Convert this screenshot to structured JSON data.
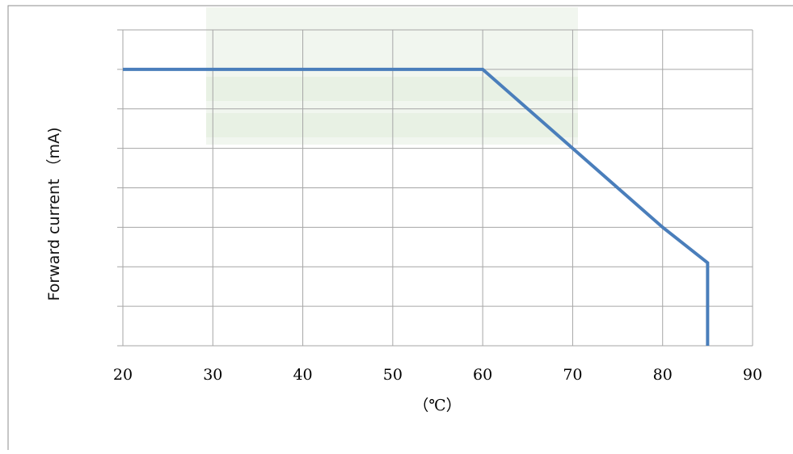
{
  "chart_data": {
    "type": "line",
    "xlabel": "（℃）",
    "ylabel": "Forward current （mA)",
    "xlim": [
      20,
      90
    ],
    "ylim": [
      0,
      8
    ],
    "x_ticks": [
      "20",
      "30",
      "40",
      "50",
      "60",
      "70",
      "80",
      "90"
    ],
    "y_ticks_labeled": false,
    "grid": true,
    "series": [
      {
        "color": "#4a7ebb",
        "points": [
          {
            "x": 20,
            "y": 7
          },
          {
            "x": 60,
            "y": 7
          },
          {
            "x": 70,
            "y": 5
          },
          {
            "x": 80,
            "y": 3
          },
          {
            "x": 85,
            "y": 2.1
          },
          {
            "x": 85,
            "y": 0
          }
        ]
      }
    ]
  },
  "colors": {
    "grid": "#a6a6a6",
    "frame": "#8c8c8c",
    "line": "#4a7ebb",
    "watermark": "#cfe0c8"
  }
}
